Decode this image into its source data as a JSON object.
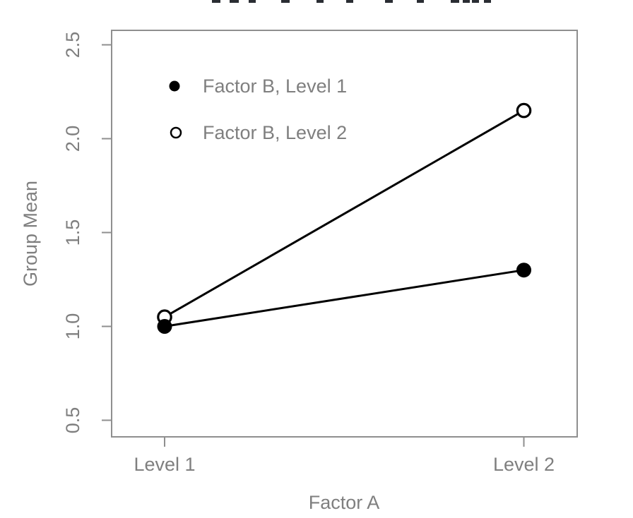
{
  "chart_data": {
    "type": "line",
    "categories": [
      "Level 1",
      "Level 2"
    ],
    "series": [
      {
        "name": "Factor B, Level 1",
        "marker": "filled-circle",
        "color": "#000000",
        "values": [
          1.0,
          1.3
        ]
      },
      {
        "name": "Factor B, Level 2",
        "marker": "open-circle",
        "color": "#000000",
        "values": [
          1.05,
          2.15
        ]
      }
    ],
    "xlabel": "Factor A",
    "ylabel": "Group Mean",
    "yticks": [
      0.5,
      1.0,
      1.5,
      2.0,
      2.5
    ],
    "ytick_labels": [
      "0.5",
      "1.0",
      "1.5",
      "2.0",
      "2.5"
    ],
    "ylim": [
      0.41,
      2.58
    ],
    "grid": false,
    "legend_position": "top-left-inside",
    "title_visible": "cropped (only bottom letter fragments visible, not legible)",
    "colors": {
      "axis": "#8f8f8f",
      "labels": "#7f7f7f",
      "data": "#000000",
      "background": "#ffffff",
      "cropped_title_fragments": "#2a2d33"
    }
  }
}
